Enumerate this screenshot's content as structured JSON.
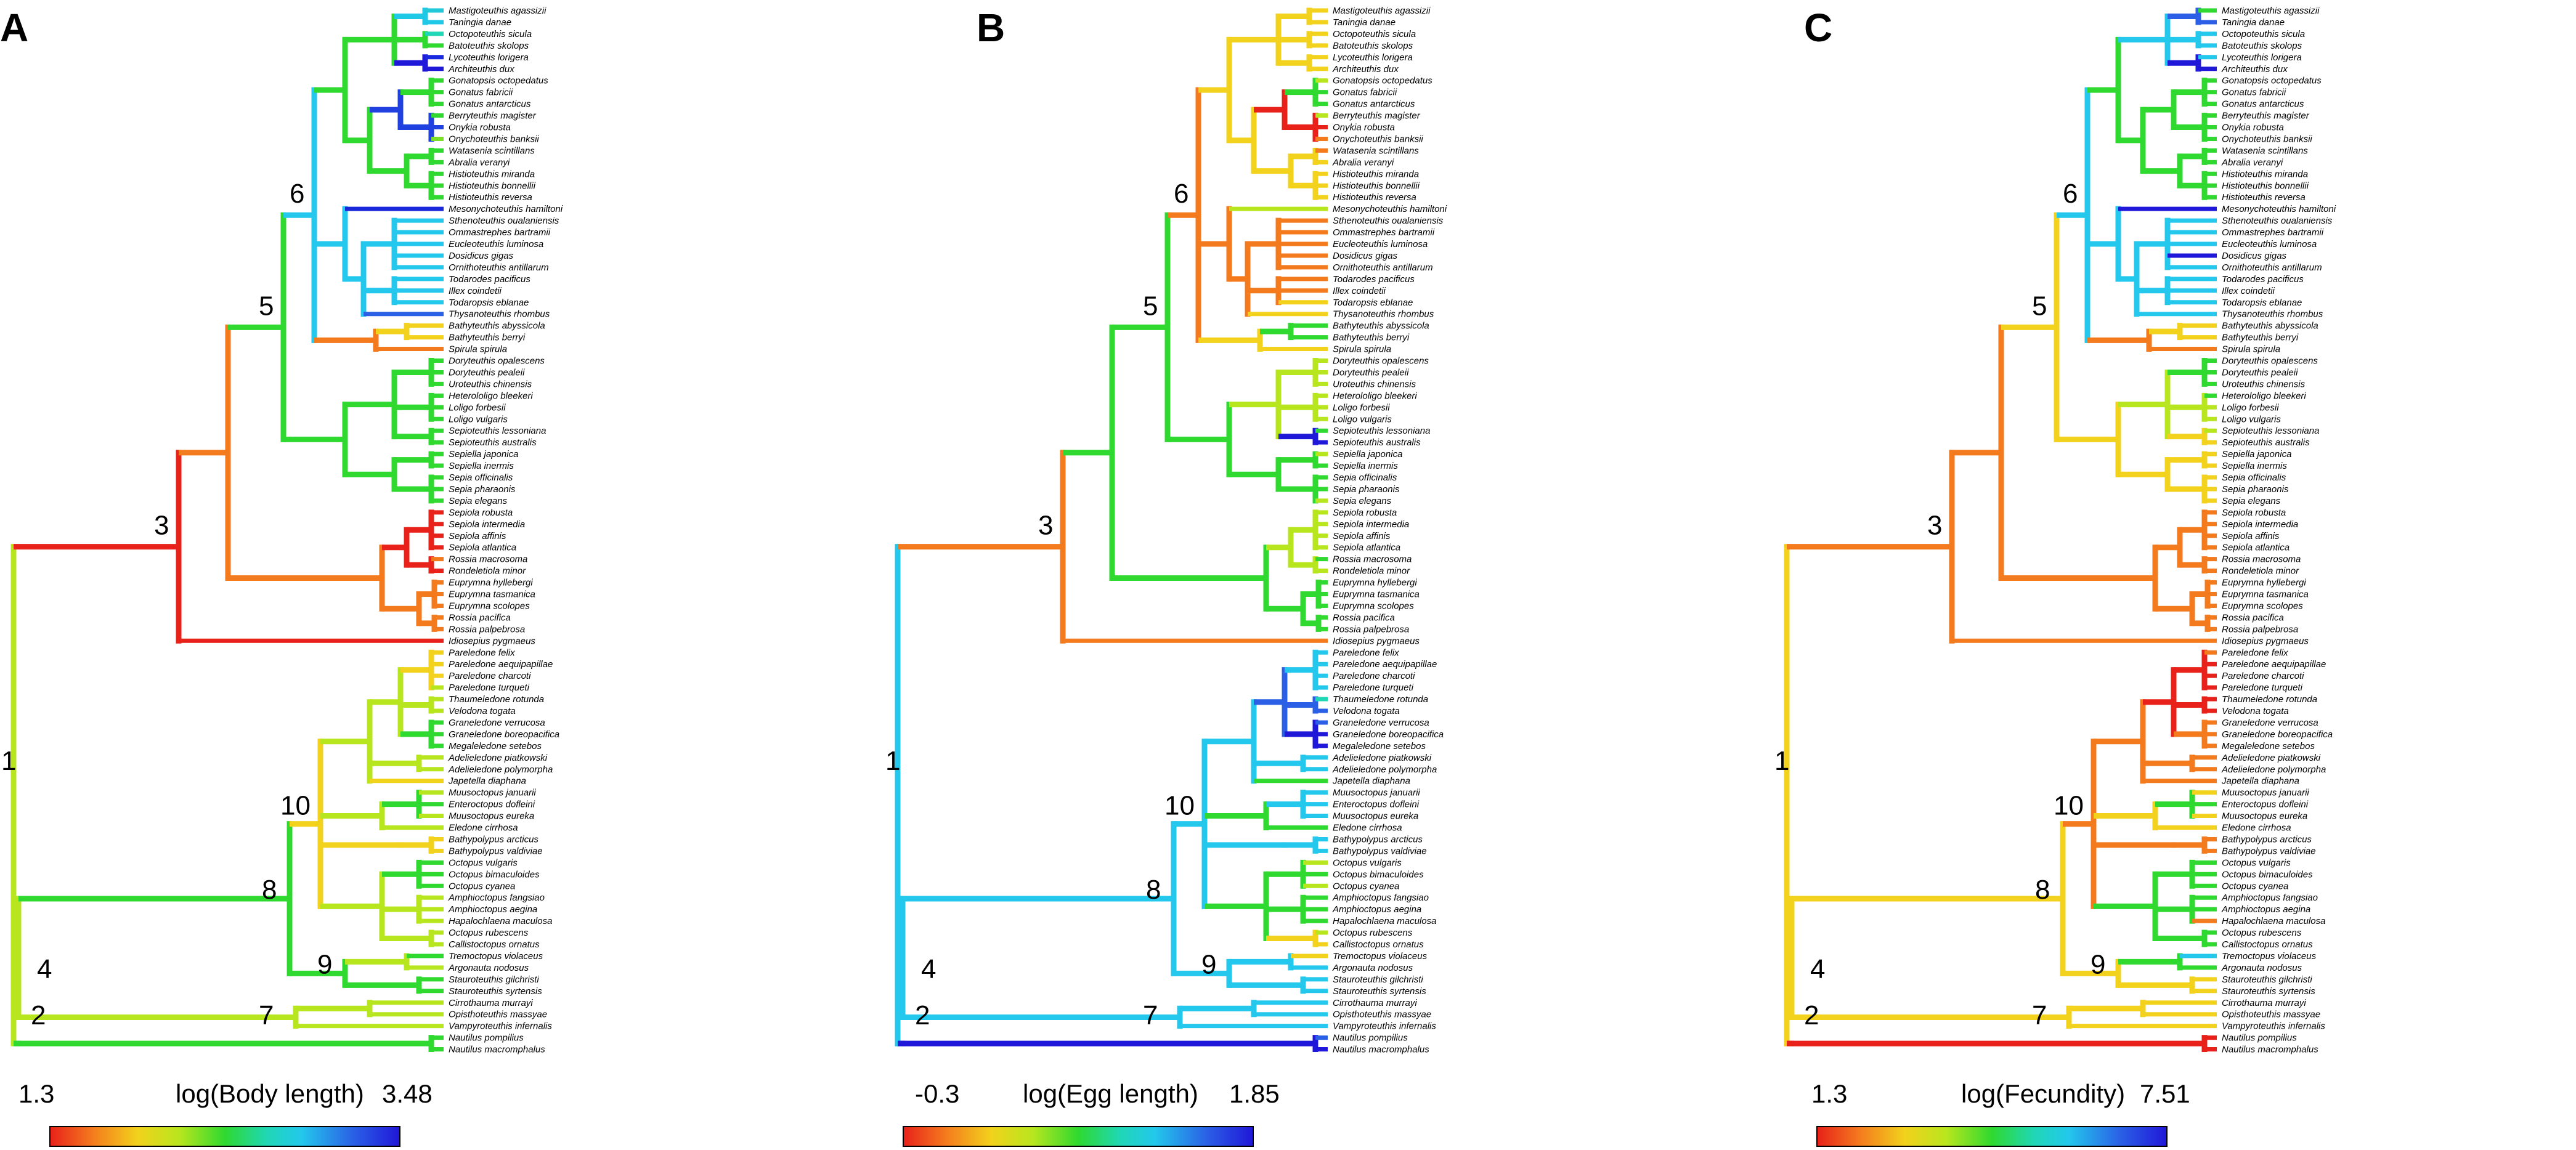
{
  "taxa": [
    "Mastigoteuthis agassizii",
    "Taningia danae",
    "Octopoteuthis sicula",
    "Batoteuthis skolops",
    "Lycoteuthis lorigera",
    "Architeuthis dux",
    "Gonatopsis octopedatus",
    "Gonatus fabricii",
    "Gonatus antarcticus",
    "Berryteuthis magister",
    "Onykia robusta",
    "Onychoteuthis banksii",
    "Watasenia scintillans",
    "Abralia veranyi",
    "Histioteuthis miranda",
    "Histioteuthis bonnellii",
    "Histioteuthis reversa",
    "Mesonychoteuthis hamiltoni",
    "Sthenoteuthis oualaniensis",
    "Ommastrephes bartramii",
    "Eucleoteuthis luminosa",
    "Dosidicus gigas",
    "Ornithoteuthis antillarum",
    "Todarodes pacificus",
    "Illex coindetii",
    "Todaropsis eblanae",
    "Thysanoteuthis rhombus",
    "Bathyteuthis abyssicola",
    "Bathyteuthis berryi",
    "Spirula spirula",
    "Doryteuthis opalescens",
    "Doryteuthis pealeii",
    "Uroteuthis chinensis",
    "Heterololigo bleekeri",
    "Loligo forbesii",
    "Loligo vulgaris",
    "Sepioteuthis lessoniana",
    "Sepioteuthis australis",
    "Sepiella japonica",
    "Sepiella inermis",
    "Sepia officinalis",
    "Sepia pharaonis",
    "Sepia elegans",
    "Sepiola robusta",
    "Sepiola intermedia",
    "Sepiola affinis",
    "Sepiola atlantica",
    "Rossia macrosoma",
    "Rondeletiola minor",
    "Euprymna hyllebergi",
    "Euprymna tasmanica",
    "Euprymna scolopes",
    "Rossia pacifica",
    "Rossia palpebrosa",
    "Idiosepius pygmaeus",
    "Pareledone felix",
    "Pareledone aequipapillae",
    "Pareledone charcoti",
    "Pareledone turqueti",
    "Thaumeledone rotunda",
    "Velodona togata",
    "Graneledone verrucosa",
    "Graneledone boreopacifica",
    "Megaleledone setebos",
    "Adelieledone piatkowski",
    "Adelieledone polymorpha",
    "Japetella diaphana",
    "Muusoctopus januarii",
    "Enteroctopus dofleini",
    "Muusoctopus eureka",
    "Eledone cirrhosa",
    "Bathypolypus arcticus",
    "Bathypolypus valdiviae",
    "Octopus vulgaris",
    "Octopus bimaculoides",
    "Octopus cyanea",
    "Amphioctopus fangsiao",
    "Amphioctopus aegina",
    "Hapalochlaena maculosa",
    "Octopus rubescens",
    "Callistoctopus ornatus",
    "Tremoctopus violaceus",
    "Argonauta nodosus",
    "Stauroteuthis gilchristi",
    "Stauroteuthis syrtensis",
    "Cirrothauma murrayi",
    "Opisthoteuthis massyae",
    "Vampyroteuthis infernalis",
    "Nautilus pompilius",
    "Nautilus macromphalus"
  ],
  "panels": [
    {
      "letter": "A",
      "legend_title": "log(Body length)",
      "legend_min": "1.3",
      "legend_max": "3.48",
      "node_labels": [
        "1",
        "2",
        "3",
        "4",
        "5",
        "6",
        "7",
        "8",
        "9",
        "10"
      ],
      "tip_colors": [
        "#22c8d8",
        "#20c8e8",
        "#1fd7b5",
        "#2fd92f",
        "#1a2ae0",
        "#2018d8",
        "#2fd92f",
        "#2fd92f",
        "#2fd92f",
        "#2fd92f",
        "#2040e0",
        "#7ddf27",
        "#2fd92f",
        "#2fd92f",
        "#2fd92f",
        "#2fd92f",
        "#2fd92f",
        "#1828d8",
        "#23c8ec",
        "#23c8ec",
        "#23c8ec",
        "#23c8ec",
        "#23c8ec",
        "#23c8ec",
        "#23c8ec",
        "#23c8ec",
        "#2a5fe6",
        "#f2d21c",
        "#f2d21c",
        "#f47a1e",
        "#2fd92f",
        "#2fd92f",
        "#2fd92f",
        "#2fd92f",
        "#2fd92f",
        "#2fd92f",
        "#2fd92f",
        "#2fd92f",
        "#2fd92f",
        "#2fd92f",
        "#2fd92f",
        "#2fd92f",
        "#2fd92f",
        "#e8221a",
        "#e8221a",
        "#e8221a",
        "#e8221a",
        "#f47a1e",
        "#e8221a",
        "#f47a1e",
        "#f47a1e",
        "#f47a1e",
        "#f47a1e",
        "#f47a1e",
        "#e8221a",
        "#f2d21c",
        "#f2d21c",
        "#f2d21c",
        "#b8e61e",
        "#b8e61e",
        "#b8e61e",
        "#2fd92f",
        "#2fd92f",
        "#2fd92f",
        "#b8e61e",
        "#b8e61e",
        "#f2d21c",
        "#b8e61e",
        "#2fd92f",
        "#b8e61e",
        "#b8e61e",
        "#f2d21c",
        "#f2d21c",
        "#2fd92f",
        "#2fd92f",
        "#2fd92f",
        "#b8e61e",
        "#b8e61e",
        "#b8e61e",
        "#b8e61e",
        "#b8e61e",
        "#2fd92f",
        "#b8e61e",
        "#2fd92f",
        "#2fd92f",
        "#b8e61e",
        "#b8e61e",
        "#b8e61e",
        "#2fd92f",
        "#2fd92f"
      ]
    },
    {
      "letter": "B",
      "legend_title": "log(Egg length)",
      "legend_min": "-0.3",
      "legend_max": "1.85",
      "node_labels": [
        "1",
        "2",
        "3",
        "4",
        "5",
        "6",
        "7",
        "8",
        "9",
        "10"
      ],
      "tip_colors": [
        "#f2d21c",
        "#f2d21c",
        "#f2d21c",
        "#f2d21c",
        "#f2d21c",
        "#f2d21c",
        "#b8e61e",
        "#2fd92f",
        "#2fd92f",
        "#b8e61e",
        "#e8221a",
        "#f47a1e",
        "#f47a1e",
        "#f2d21c",
        "#f2d21c",
        "#f2d21c",
        "#f2d21c",
        "#b8e61e",
        "#f47a1e",
        "#f47a1e",
        "#f47a1e",
        "#f47a1e",
        "#f47a1e",
        "#f47a1e",
        "#f47a1e",
        "#f2d21c",
        "#f2d21c",
        "#2fd92f",
        "#2fd92f",
        "#f2d21c",
        "#b8e61e",
        "#b8e61e",
        "#b8e61e",
        "#b8e61e",
        "#b8e61e",
        "#b8e61e",
        "#2fd92f",
        "#2018d8",
        "#b8e61e",
        "#2fd92f",
        "#2fd92f",
        "#2fd92f",
        "#b8e61e",
        "#b8e61e",
        "#b8e61e",
        "#b8e61e",
        "#b8e61e",
        "#2fd92f",
        "#b8e61e",
        "#2fd92f",
        "#2fd92f",
        "#2fd92f",
        "#2fd92f",
        "#2fd92f",
        "#f47a1e",
        "#23c8ec",
        "#23c8ec",
        "#23c8ec",
        "#23c8ec",
        "#1fd7b5",
        "#2a5fe6",
        "#2a5fe6",
        "#2018d8",
        "#2018d8",
        "#23c8ec",
        "#23c8ec",
        "#2fd92f",
        "#23c8ec",
        "#23c8ec",
        "#23c8ec",
        "#2fd92f",
        "#23c8ec",
        "#23c8ec",
        "#b8e61e",
        "#2fd92f",
        "#b8e61e",
        "#2fd92f",
        "#2fd92f",
        "#2fd92f",
        "#b8e61e",
        "#f2d21c",
        "#f2d21c",
        "#23c8ec",
        "#23c8ec",
        "#23c8ec",
        "#23c8ec",
        "#23c8ec",
        "#23c8ec",
        "#2a5fe6",
        "#2018d8"
      ]
    },
    {
      "letter": "C",
      "legend_title": "log(Fecundity)",
      "legend_min": "1.3",
      "legend_max": "7.51",
      "node_labels": [
        "1",
        "2",
        "3",
        "4",
        "5",
        "6",
        "7",
        "8",
        "9",
        "10"
      ],
      "tip_colors": [
        "#2fd92f",
        "#2a5fe6",
        "#23c8ec",
        "#23c8ec",
        "#23c8ec",
        "#2018d8",
        "#2fd92f",
        "#2fd92f",
        "#2fd92f",
        "#2fd92f",
        "#2fd92f",
        "#2fd92f",
        "#2fd92f",
        "#2fd92f",
        "#2fd92f",
        "#2fd92f",
        "#2fd92f",
        "#2018d8",
        "#23c8ec",
        "#23c8ec",
        "#23c8ec",
        "#2018d8",
        "#23c8ec",
        "#23c8ec",
        "#23c8ec",
        "#23c8ec",
        "#23c8ec",
        "#f2d21c",
        "#f2d21c",
        "#f47a1e",
        "#2fd92f",
        "#2fd92f",
        "#2fd92f",
        "#2fd92f",
        "#b8e61e",
        "#b8e61e",
        "#b8e61e",
        "#f2d21c",
        "#f2d21c",
        "#f2d21c",
        "#f2d21c",
        "#f2d21c",
        "#f2d21c",
        "#f47a1e",
        "#f47a1e",
        "#f47a1e",
        "#f47a1e",
        "#f47a1e",
        "#f47a1e",
        "#f47a1e",
        "#f47a1e",
        "#f47a1e",
        "#f47a1e",
        "#f47a1e",
        "#f47a1e",
        "#f47a1e",
        "#e8221a",
        "#e8221a",
        "#e8221a",
        "#e8221a",
        "#e8221a",
        "#f47a1e",
        "#f47a1e",
        "#f47a1e",
        "#f47a1e",
        "#f47a1e",
        "#f47a1e",
        "#f2d21c",
        "#2fd92f",
        "#f2d21c",
        "#f2d21c",
        "#f47a1e",
        "#f47a1e",
        "#2fd92f",
        "#2fd92f",
        "#2fd92f",
        "#2fd92f",
        "#2fd92f",
        "#f47a1e",
        "#2fd92f",
        "#2fd92f",
        "#23c8ec",
        "#2fd92f",
        "#f2d21c",
        "#f2d21c",
        "#f2d21c",
        "#f2d21c",
        "#f2d21c",
        "#e8221a",
        "#e8221a"
      ]
    }
  ]
}
